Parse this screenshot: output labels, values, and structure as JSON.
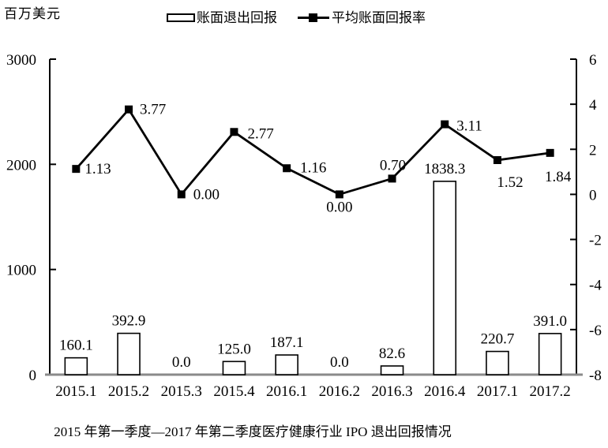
{
  "caption": "2015 年第一季度—2017 年第二季度医疗健康行业 IPO 退出回报情况",
  "colors": {
    "ink": "#000000",
    "bar_fill": "#ffffff",
    "baseline_axis": "#8a8a8a",
    "background": "#ffffff"
  },
  "chart_data": {
    "type": "combo-bar-line",
    "categories": [
      "2015.1",
      "2015.2",
      "2015.3",
      "2015.4",
      "2016.1",
      "2016.2",
      "2016.3",
      "2016.4",
      "2017.1",
      "2017.2"
    ],
    "series": [
      {
        "name": "账面退出回报",
        "type": "bar",
        "axis": "left",
        "values": [
          160.1,
          392.9,
          0.0,
          125.0,
          187.1,
          0.0,
          82.6,
          1838.3,
          220.7,
          391.0
        ],
        "labels": [
          "160.1",
          "392.9",
          "0.0",
          "125.0",
          "187.1",
          "0.0",
          "82.6",
          "1838.3",
          "220.7",
          "391.0"
        ]
      },
      {
        "name": "平均账面回报率",
        "type": "line",
        "axis": "right",
        "values": [
          1.13,
          3.77,
          0.0,
          2.77,
          1.16,
          0.0,
          0.7,
          3.11,
          1.52,
          1.84
        ],
        "labels": [
          "1.13",
          "3.77",
          "0.00",
          "2.77",
          "1.16",
          "0.00",
          "0.70",
          "3.11",
          "1.52",
          "1.84"
        ]
      }
    ],
    "left_axis": {
      "title": "百万美元",
      "min": 0,
      "max": 3000,
      "ticks": [
        0,
        1000,
        2000,
        3000
      ]
    },
    "right_axis": {
      "min": -8,
      "max": 6,
      "ticks": [
        -8,
        -6,
        -4,
        -2,
        0,
        2,
        4,
        6
      ]
    },
    "legend_position": "top",
    "grid": false,
    "line_label_offsets": [
      [
        11,
        6,
        "start"
      ],
      [
        14,
        6,
        "start"
      ],
      [
        15,
        6,
        "start"
      ],
      [
        17,
        8,
        "start"
      ],
      [
        17,
        5,
        "start"
      ],
      [
        0,
        22,
        "middle"
      ],
      [
        1,
        -11,
        "middle"
      ],
      [
        15,
        8,
        "start"
      ],
      [
        16,
        34,
        "middle"
      ],
      [
        10,
        36,
        "middle"
      ]
    ]
  }
}
